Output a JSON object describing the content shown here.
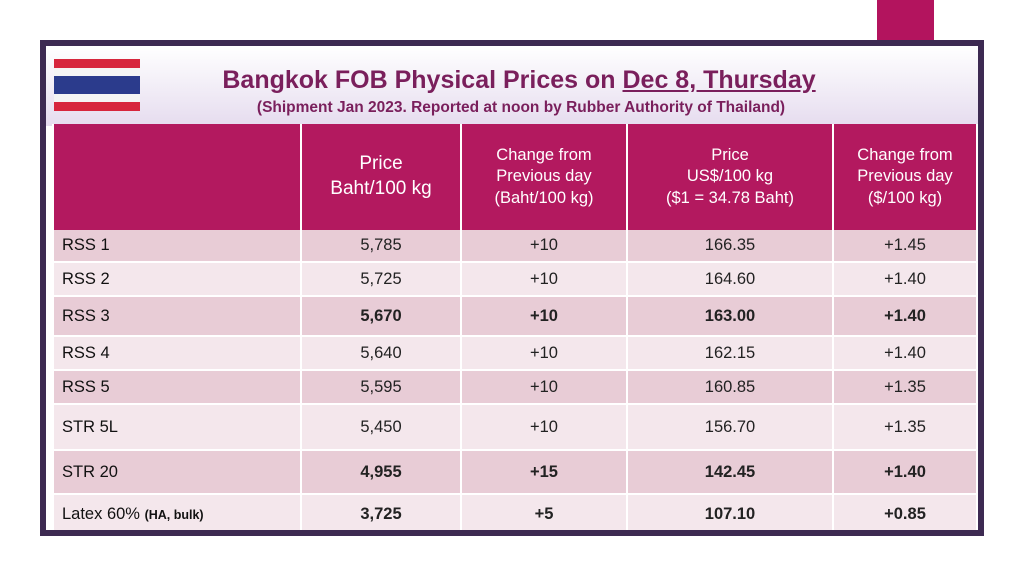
{
  "title": {
    "prefix": "Bangkok FOB Physical Prices on ",
    "date": "Dec 8, Thursday"
  },
  "subtitle": "(Shipment Jan 2023. Reported at noon by Rubber Authority of Thailand)",
  "flag_icon": "thailand-flag",
  "colors": {
    "header_bg": "#b3195f",
    "row_dark": "#e8ccd6",
    "row_light": "#f4e7ec",
    "title": "#7a1f5c",
    "accent": "#b3145e",
    "frame": "#3d2a52"
  },
  "columns": {
    "price_baht": [
      "Price",
      "Baht/100 kg"
    ],
    "change_baht": [
      "Change from",
      "Previous day",
      "(Baht/100 kg)"
    ],
    "price_usd": [
      "Price",
      "US$/100 kg",
      "($1 = 34.78 Baht)"
    ],
    "change_usd": [
      "Change from",
      "Previous day",
      "($/100 kg)"
    ]
  },
  "rows": [
    {
      "name": "RSS 1",
      "note": "",
      "price_baht": "5,785",
      "change_baht": "+10",
      "price_usd": "166.35",
      "change_usd": "+1.45"
    },
    {
      "name": "RSS 2",
      "note": "",
      "price_baht": "5,725",
      "change_baht": "+10",
      "price_usd": "164.60",
      "change_usd": "+1.40"
    },
    {
      "name": "RSS 3",
      "note": "",
      "price_baht": "5,670",
      "change_baht": "+10",
      "price_usd": "163.00",
      "change_usd": "+1.40"
    },
    {
      "name": "RSS 4",
      "note": "",
      "price_baht": "5,640",
      "change_baht": "+10",
      "price_usd": "162.15",
      "change_usd": "+1.40"
    },
    {
      "name": "RSS 5",
      "note": "",
      "price_baht": "5,595",
      "change_baht": "+10",
      "price_usd": "160.85",
      "change_usd": "+1.35"
    },
    {
      "name": "STR 5L",
      "note": "",
      "price_baht": "5,450",
      "change_baht": "+10",
      "price_usd": "156.70",
      "change_usd": "+1.35"
    },
    {
      "name": "STR 20",
      "note": "",
      "price_baht": "4,955",
      "change_baht": "+15",
      "price_usd": "142.45",
      "change_usd": "+1.40"
    },
    {
      "name": "Latex 60% ",
      "note": "(HA, bulk)",
      "price_baht": "3,725",
      "change_baht": "+5",
      "price_usd": "107.10",
      "change_usd": "+0.85"
    }
  ]
}
